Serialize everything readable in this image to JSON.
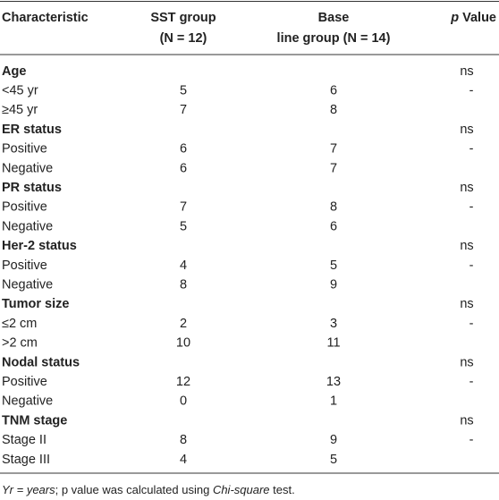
{
  "table": {
    "header": {
      "characteristic": "Characteristic",
      "sst": [
        "SST group",
        "(N = 12)"
      ],
      "base": [
        "Base",
        "line group (N = 14)"
      ],
      "p": [
        "p",
        " Value"
      ]
    },
    "sections": [
      {
        "title": "Age",
        "p": "ns",
        "rows": [
          [
            "<45 yr",
            5,
            6,
            "-"
          ],
          [
            "≥45 yr",
            7,
            8
          ]
        ]
      },
      {
        "title": "ER status",
        "p": "ns",
        "rows": [
          [
            "Positive",
            6,
            7,
            "-"
          ],
          [
            "Negative",
            6,
            7
          ]
        ]
      },
      {
        "title": "PR status",
        "p": "ns",
        "rows": [
          [
            "Positive",
            7,
            8,
            "-"
          ],
          [
            "Negative",
            5,
            6
          ]
        ]
      },
      {
        "title": "Her-2 status",
        "p": "ns",
        "rows": [
          [
            "Positive",
            4,
            5,
            "-"
          ],
          [
            "Negative",
            8,
            9
          ]
        ]
      },
      {
        "title": "Tumor size",
        "p": "ns",
        "rows": [
          [
            "≤2 cm",
            2,
            3,
            "-"
          ],
          [
            ">2 cm",
            10,
            11
          ]
        ]
      },
      {
        "title": "Nodal status",
        "p": "ns",
        "rows": [
          [
            "Positive",
            12,
            13,
            "-"
          ],
          [
            "Negative",
            0,
            1
          ]
        ]
      },
      {
        "title": "TNM stage",
        "p": "ns",
        "rows": [
          [
            "Stage II",
            8,
            9,
            "-"
          ],
          [
            "Stage III",
            4,
            5
          ]
        ]
      }
    ],
    "footnote": [
      "Yr",
      " = years",
      "; p value was calculated using ",
      "Chi-square",
      " test."
    ]
  }
}
